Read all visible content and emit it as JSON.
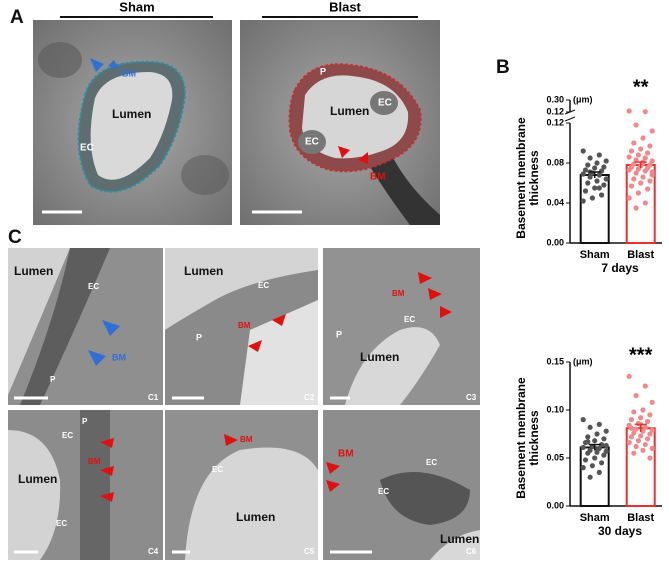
{
  "panels": {
    "a": "A",
    "b": "B",
    "c": "C"
  },
  "panel_a": {
    "sham": {
      "title": "Sham",
      "labels": [
        "BM",
        "Lumen",
        "EC"
      ]
    },
    "blast": {
      "title": "Blast",
      "labels": [
        "P",
        "Lumen",
        "EC",
        "EC",
        "BM"
      ]
    }
  },
  "panel_c": [
    {
      "id": "C1",
      "labels": [
        "Lumen",
        "EC",
        "BM",
        "P"
      ]
    },
    {
      "id": "C2",
      "labels": [
        "Lumen",
        "EC",
        "BM",
        "P"
      ]
    },
    {
      "id": "C3",
      "labels": [
        "BM",
        "EC",
        "P",
        "Lumen"
      ]
    },
    {
      "id": "C4",
      "labels": [
        "EC",
        "P",
        "BM",
        "Lumen",
        "EC"
      ]
    },
    {
      "id": "C5",
      "labels": [
        "BM",
        "EC",
        "Lumen"
      ]
    },
    {
      "id": "C6",
      "labels": [
        "BM",
        "EC",
        "EC",
        "Lumen"
      ]
    }
  ],
  "chart_data": [
    {
      "type": "bar",
      "y_label_lines": [
        "Basement membrane",
        "thickness"
      ],
      "unit": "(μm)",
      "significance": "**",
      "x_label": "7 days",
      "categories": [
        "Sham",
        "Blast"
      ],
      "values": [
        0.068,
        0.078
      ],
      "errors": [
        0.003,
        0.003
      ],
      "colors": [
        "#111111",
        "#e8312f"
      ],
      "point_colors": [
        "#555555",
        "#f08a8a"
      ],
      "points": [
        [
          0.092,
          0.088,
          0.085,
          0.082,
          0.08,
          0.078,
          0.076,
          0.075,
          0.073,
          0.072,
          0.07,
          0.069,
          0.068,
          0.066,
          0.064,
          0.062,
          0.06,
          0.058,
          0.055,
          0.052,
          0.048,
          0.045,
          0.042,
          0.055,
          0.071
        ],
        [
          0.135,
          0.125,
          0.118,
          0.112,
          0.105,
          0.1,
          0.097,
          0.094,
          0.092,
          0.09,
          0.088,
          0.086,
          0.085,
          0.083,
          0.082,
          0.08,
          0.079,
          0.078,
          0.077,
          0.076,
          0.075,
          0.074,
          0.073,
          0.072,
          0.07,
          0.068,
          0.066,
          0.064,
          0.062,
          0.06,
          0.057,
          0.054,
          0.05,
          0.045,
          0.04,
          0.035,
          0.071,
          0.081
        ]
      ],
      "ylim": [
        0,
        0.12
      ],
      "yticks": [
        {
          "value": 0,
          "label": "0.00"
        },
        {
          "value": 0.04,
          "label": "0.04"
        },
        {
          "value": 0.08,
          "label": "0.08"
        },
        {
          "value": 0.12,
          "label": "0.12"
        }
      ],
      "upper_ylim": [
        0.12,
        0.3
      ],
      "upper_yticks": [
        {
          "value": 0.12,
          "label": "0.12"
        },
        {
          "value": 0.3,
          "label": "0.30"
        }
      ]
    },
    {
      "type": "bar",
      "y_label_lines": [
        "Basement membrane",
        "thickness"
      ],
      "unit": "(μm)",
      "significance": "***",
      "x_label": "30 days",
      "categories": [
        "Sham",
        "Blast"
      ],
      "values": [
        0.061,
        0.081
      ],
      "errors": [
        0.003,
        0.004
      ],
      "colors": [
        "#111111",
        "#e8312f"
      ],
      "point_colors": [
        "#555555",
        "#f08a8a"
      ],
      "points": [
        [
          0.09,
          0.085,
          0.082,
          0.078,
          0.075,
          0.072,
          0.07,
          0.068,
          0.066,
          0.064,
          0.062,
          0.061,
          0.06,
          0.058,
          0.057,
          0.056,
          0.055,
          0.053,
          0.05,
          0.048,
          0.045,
          0.042,
          0.04,
          0.035,
          0.03,
          0.063,
          0.059,
          0.067
        ],
        [
          0.135,
          0.125,
          0.115,
          0.108,
          0.1,
          0.098,
          0.095,
          0.092,
          0.09,
          0.088,
          0.086,
          0.084,
          0.082,
          0.08,
          0.079,
          0.078,
          0.076,
          0.075,
          0.073,
          0.072,
          0.07,
          0.068,
          0.066,
          0.064,
          0.062,
          0.06,
          0.058,
          0.055,
          0.05,
          0.085,
          0.081
        ]
      ],
      "ylim": [
        0,
        0.15
      ],
      "yticks": [
        {
          "value": 0,
          "label": "0.00"
        },
        {
          "value": 0.05,
          "label": "0.05"
        },
        {
          "value": 0.1,
          "label": "0.10"
        },
        {
          "value": 0.15,
          "label": "0.15"
        }
      ]
    }
  ]
}
